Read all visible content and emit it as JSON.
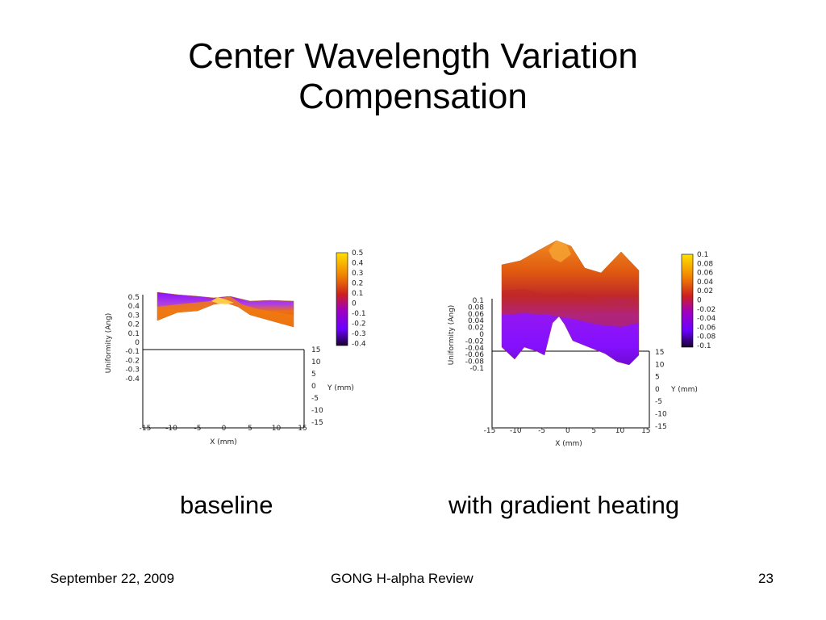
{
  "slide": {
    "title_line1": "Center Wavelength Variation",
    "title_line2": "Compensation",
    "caption_left": "baseline",
    "caption_right": "with gradient heating",
    "footer_date": "September 22, 2009",
    "footer_title": "GONG H-alpha Review",
    "footer_page": "23"
  },
  "colors": {
    "low": "#1a0033",
    "mid_low": "#8b00ff",
    "mid": "#cc2222",
    "mid_high": "#f07000",
    "high": "#ffd700"
  },
  "chart_data": [
    {
      "type": "surface",
      "name_hint": "baseline",
      "zlabel": "Uniformity (Ang)",
      "xlabel": "X (mm)",
      "ylabel": "Y (mm)",
      "zticks": [
        "0.5",
        "0.4",
        "0.3",
        "0.2",
        "0.1",
        "0",
        "-0.1",
        "-0.2",
        "-0.3",
        "-0.4"
      ],
      "xticks": [
        "-15",
        "-10",
        "-5",
        "0",
        "5",
        "10",
        "15"
      ],
      "yticks": [
        "15",
        "10",
        "5",
        "0",
        "-5",
        "-10",
        "-15"
      ],
      "colorbar_ticks": [
        "0.5",
        "0.4",
        "0.3",
        "0.2",
        "0.1",
        "0",
        "-0.1",
        "-0.2",
        "-0.3",
        "-0.4"
      ],
      "zlim": [
        -0.4,
        0.5
      ],
      "xlim": [
        -15,
        15
      ],
      "ylim": [
        -15,
        15
      ],
      "surface_front": [
        0.28,
        0.3,
        0.3,
        0.36,
        0.33,
        0.33,
        0.27,
        0.2
      ],
      "surface_back": [
        0.4,
        0.42,
        0.41,
        0.38,
        0.35,
        0.34,
        0.35,
        0.36
      ]
    },
    {
      "type": "surface",
      "name_hint": "with gradient heating",
      "zlabel": "Uniformity (Ang)",
      "xlabel": "X (mm)",
      "ylabel": "Y (mm)",
      "zticks": [
        "0.1",
        "0.08",
        "0.06",
        "0.04",
        "0.02",
        "0",
        "-0.02",
        "-0.04",
        "-0.06",
        "-0.08",
        "-0.1"
      ],
      "xticks": [
        "-15",
        "-10",
        "-5",
        "0",
        "5",
        "10",
        "15"
      ],
      "yticks": [
        "15",
        "10",
        "5",
        "0",
        "-5",
        "-10",
        "-15"
      ],
      "colorbar_ticks": [
        "0.1",
        "0.08",
        "0.06",
        "0.04",
        "0.02",
        "0",
        "-0.02",
        "-0.04",
        "-0.06",
        "-0.08",
        "-0.1"
      ],
      "zlim": [
        -0.1,
        0.1
      ],
      "xlim": [
        -15,
        15
      ],
      "ylim": [
        -15,
        15
      ],
      "surface_top": [
        0.11,
        0.115,
        0.12,
        0.13,
        0.105,
        0.09,
        0.125,
        0.095
      ],
      "surface_bottom": [
        -0.02,
        -0.035,
        -0.01,
        0.03,
        -0.02,
        -0.035,
        -0.055,
        -0.045
      ]
    }
  ]
}
